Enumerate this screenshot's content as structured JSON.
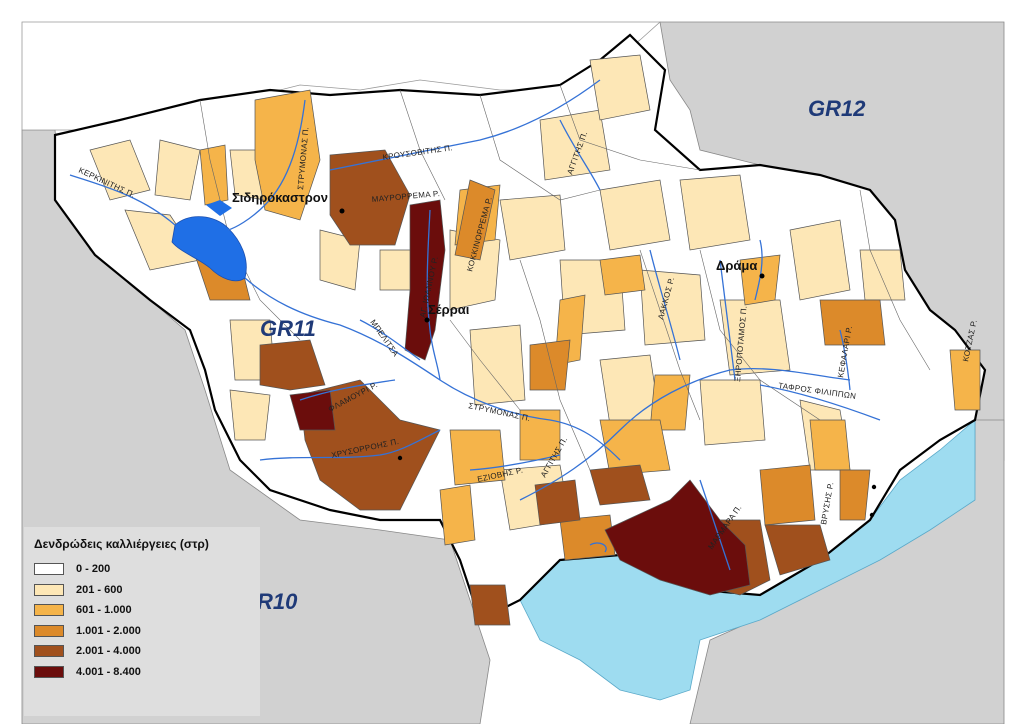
{
  "map": {
    "regions": [
      {
        "id": "gr12",
        "label": "GR12"
      },
      {
        "id": "gr11",
        "label": "GR11"
      },
      {
        "id": "gr10",
        "label": "R10"
      }
    ],
    "cities": [
      {
        "id": "sidirokastron",
        "label": "Σιδηρόκαστρον"
      },
      {
        "id": "serrai",
        "label": "Σέρραι"
      },
      {
        "id": "drama",
        "label": "Δράμα"
      }
    ],
    "rivers": [
      {
        "id": "kerkinitis",
        "label": "ΚΕΡΚΙΝΙΤΗΣ Π."
      },
      {
        "id": "strymonas-north",
        "label": "ΣΤΡΥΜΟΝΑΣ Π."
      },
      {
        "id": "krousovitis",
        "label": "ΚΡΟΥΣΟΒΙΤΗΣ Π."
      },
      {
        "id": "angitis-north",
        "label": "ΑΓΓΙΤΗΣ Π."
      },
      {
        "id": "mavrorrema",
        "label": "ΜΑΥΡΟΡΡΕΜΑ Ρ."
      },
      {
        "id": "kokkinorrema",
        "label": "ΚΟΚΚΙΝΟΡΡΕΜΑ Ρ."
      },
      {
        "id": "agios-ioannis",
        "label": "ΑΓ. ΙΩΑΝΝΟΥ Ρ."
      },
      {
        "id": "belitsa",
        "label": "ΜΠΕΛΙΤΣΑ"
      },
      {
        "id": "flamouri",
        "label": "ΦΛΑΜΟΥΡΙ Ρ."
      },
      {
        "id": "chrysorrois",
        "label": "ΧΡΥΣΟΡΡΟΗΣ Π."
      },
      {
        "id": "strymonas-south",
        "label": "ΣΤΡΥΜΟΝΑΣ Π."
      },
      {
        "id": "eziovis",
        "label": "ΕΖΙΟΒΗΣ Ρ."
      },
      {
        "id": "angitis-south",
        "label": "ΑΓΓΙΤΗΣ Π."
      },
      {
        "id": "lakkos",
        "label": "ΛΑΚΚΟΣ Ρ."
      },
      {
        "id": "xiropotamos",
        "label": "ΞΗΡΟΠΟΤΑΜΟΣ Π."
      },
      {
        "id": "tafros",
        "label": "ΤΑΦΡΟΣ ΦΙΛΙΠΠΩΝ"
      },
      {
        "id": "kefalari",
        "label": "ΚΕΦΑΛΑΡΙ Ρ."
      },
      {
        "id": "kotzas",
        "label": "ΚΟΤΖΑΣ Ρ."
      },
      {
        "id": "marmara",
        "label": "ΜΑΡΜΑΡΑ Π."
      },
      {
        "id": "vrysis",
        "label": "ΒΡΥΣΗΣ Ρ."
      }
    ]
  },
  "legend": {
    "title": "Δενδρώδεις καλλιέργειες (στρ)",
    "classes": [
      {
        "label": "0 - 200",
        "color": "#ffffff"
      },
      {
        "label": "201 - 600",
        "color": "#fde7b6"
      },
      {
        "label": "601 - 1.000",
        "color": "#f5b44a"
      },
      {
        "label": "1.001 - 2.000",
        "color": "#dc8a2a"
      },
      {
        "label": "2.001 - 4.000",
        "color": "#a0501d"
      },
      {
        "label": "4.001 - 8.400",
        "color": "#6b0d0c"
      }
    ]
  },
  "colors": {
    "background_land": "#d1d1d1",
    "sea": "#9edcf0",
    "lake": "#1f6fe6",
    "river": "#3572d6",
    "region_label": "#1f3a78"
  }
}
